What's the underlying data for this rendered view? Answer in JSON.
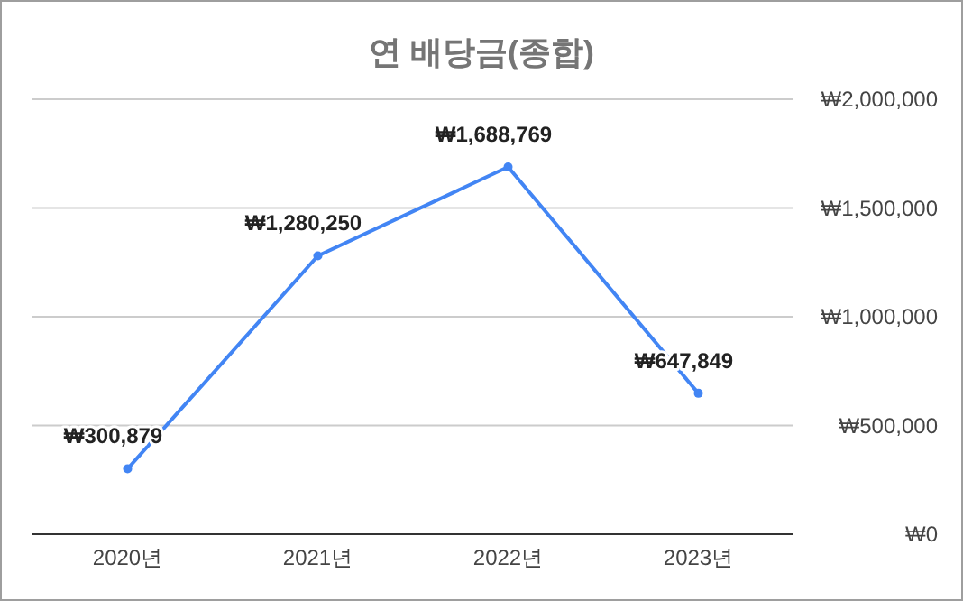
{
  "chart_data": {
    "type": "line",
    "title": "연 배당금(종합)",
    "categories": [
      "2020년",
      "2021년",
      "2022년",
      "2023년"
    ],
    "series": [
      {
        "color": "#4285f4",
        "values": [
          300879,
          1280250,
          1688769,
          647849
        ],
        "value_labels": [
          "₩300,879",
          "₩1,280,250",
          "₩1,688,769",
          "₩647,849"
        ]
      }
    ],
    "ylim": [
      0,
      2000000
    ],
    "yticks": [
      {
        "value": 0,
        "label": "₩0"
      },
      {
        "value": 500000,
        "label": "₩500,000"
      },
      {
        "value": 1000000,
        "label": "₩1,000,000"
      },
      {
        "value": 1500000,
        "label": "₩1,500,000"
      },
      {
        "value": 2000000,
        "label": "₩2,000,000"
      }
    ],
    "grid": "y",
    "marker": "circle",
    "line_style": "solid"
  }
}
